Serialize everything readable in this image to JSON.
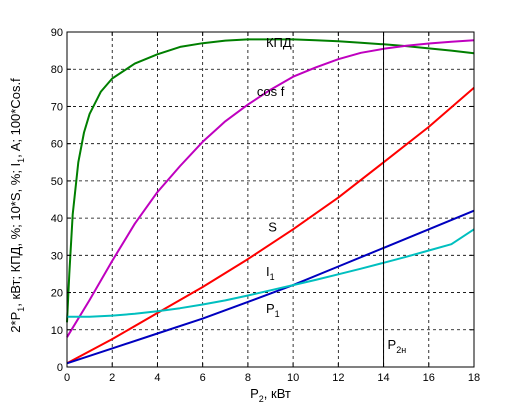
{
  "chart_data": {
    "type": "line",
    "xlabel_main": "P",
    "xlabel_sub": "2",
    "xlabel_rest": ", кВт",
    "ylabel_parts": [
      {
        "t": "2*P"
      },
      {
        "t": "1",
        "sub": true
      },
      {
        "t": ", кВт; КПД, %; 10*S, %; I"
      },
      {
        "t": "1",
        "sub": true
      },
      {
        "t": ", A; 100*Cos.f"
      }
    ],
    "xlim": [
      0,
      18
    ],
    "ylim": [
      0,
      90
    ],
    "xticks": [
      0,
      2,
      4,
      6,
      8,
      10,
      12,
      14,
      16,
      18
    ],
    "yticks": [
      0,
      10,
      20,
      30,
      40,
      50,
      60,
      70,
      80,
      90
    ],
    "grid": true,
    "vline": {
      "x": 14,
      "label_main": "P",
      "label_sub": "2н"
    },
    "series": [
      {
        "name": "КПД",
        "color": "#007f00",
        "label_at": [
          8.8,
          86
        ],
        "x": [
          0,
          0.1,
          0.25,
          0.5,
          0.75,
          1,
          1.5,
          2,
          3,
          4,
          5,
          6,
          7,
          8,
          9,
          10,
          11,
          12,
          13,
          14,
          15,
          16,
          17,
          18
        ],
        "y": [
          12,
          25,
          41,
          55,
          63,
          68,
          74,
          77.5,
          81.5,
          84,
          86,
          87,
          87.7,
          88,
          88,
          88,
          87.8,
          87.5,
          87.1,
          86.7,
          86.2,
          85.6,
          85,
          84.3
        ]
      },
      {
        "name": "cos f",
        "color": "#bf00bf",
        "label_at": [
          8.4,
          72.8
        ],
        "x": [
          0,
          1,
          2,
          3,
          4,
          5,
          6,
          7,
          8,
          9,
          10,
          11,
          12,
          13,
          14,
          15,
          16,
          17,
          18
        ],
        "y": [
          8,
          18,
          28.5,
          38.5,
          47,
          54,
          60.5,
          66,
          70.5,
          74.5,
          78,
          80.5,
          82.7,
          84.4,
          85.5,
          86.3,
          86.9,
          87.4,
          87.8
        ]
      },
      {
        "name": "S",
        "color": "#ff0000",
        "label_at": [
          8.9,
          36.4
        ],
        "x": [
          0,
          2,
          4,
          6,
          8,
          10,
          12,
          14,
          16,
          18
        ],
        "y": [
          1,
          7.5,
          14.5,
          21.5,
          29,
          37,
          45.5,
          55,
          64.5,
          75
        ]
      },
      {
        "name": "I",
        "name_sub": "1",
        "color": "#0000bf",
        "label_at": [
          8.8,
          24.5
        ],
        "x": [
          0,
          2,
          4,
          6,
          8,
          10,
          12,
          14,
          16,
          18
        ],
        "y": [
          1,
          5,
          9,
          13,
          17.5,
          22,
          27,
          32,
          37,
          42
        ]
      },
      {
        "name": "P",
        "name_sub": "1",
        "color": "#00bfbf",
        "label_at": [
          8.8,
          14.5
        ],
        "x": [
          0,
          1,
          2,
          3,
          4,
          5,
          6,
          7,
          8,
          9,
          10,
          11,
          12,
          13,
          14,
          15,
          16,
          17,
          18
        ],
        "y": [
          13.5,
          13.5,
          13.8,
          14.3,
          15,
          15.8,
          16.8,
          17.9,
          19.2,
          20.6,
          22,
          23.4,
          24.9,
          26.4,
          28,
          29.6,
          31.3,
          33,
          37
        ]
      }
    ]
  }
}
